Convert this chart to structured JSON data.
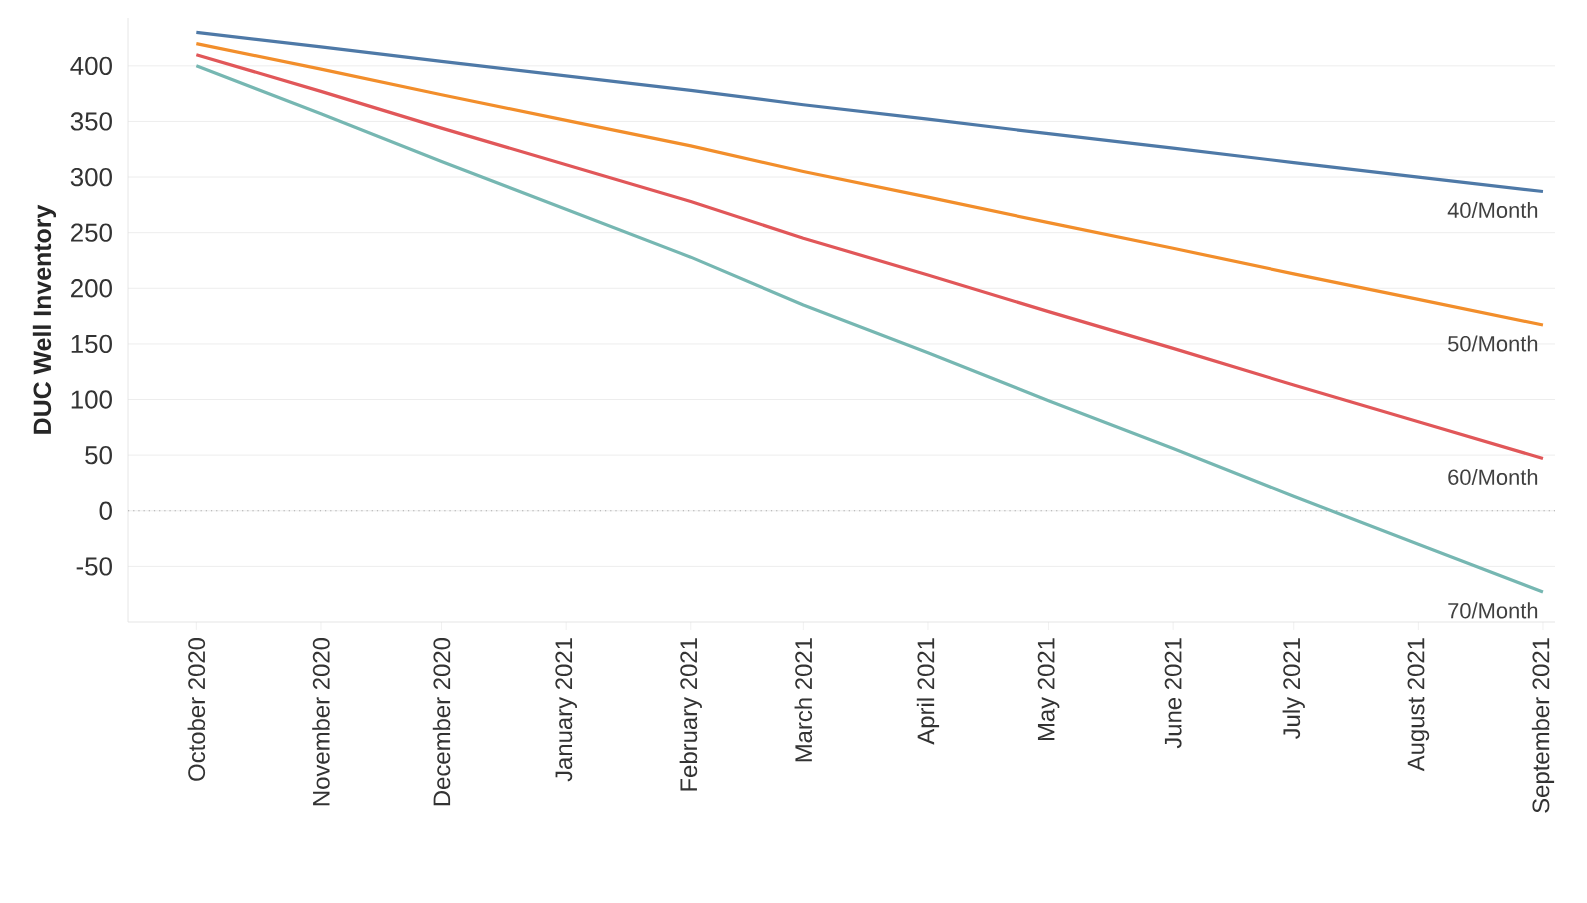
{
  "chart_data": {
    "type": "line",
    "ylabel": "DUC Well Inventory",
    "x": [
      "2020-10",
      "2020-11",
      "2020-12",
      "2021-01",
      "2021-02",
      "2021-03",
      "2021-04",
      "2021-05",
      "2021-06",
      "2021-07",
      "2021-08",
      "2021-09"
    ],
    "series": [
      {
        "name": "40/Month",
        "color": "#4e79a7",
        "values": [
          430,
          417,
          404,
          391,
          378,
          365,
          352,
          339,
          326,
          313,
          300,
          287
        ]
      },
      {
        "name": "50/Month",
        "color": "#f28e2b",
        "values": [
          420,
          397,
          374,
          351,
          328,
          305,
          282,
          259,
          236,
          213,
          190,
          167
        ]
      },
      {
        "name": "60/Month",
        "color": "#e15759",
        "values": [
          410,
          377,
          344,
          311,
          278,
          245,
          212,
          179,
          146,
          113,
          80,
          47
        ]
      },
      {
        "name": "70/Month",
        "color": "#76b7b2",
        "values": [
          400,
          357,
          314,
          271,
          228,
          185,
          142,
          99,
          56,
          13,
          -30,
          -73
        ]
      }
    ],
    "xlim": [
      "2020-09-14",
      "2021-09-04"
    ],
    "ylim": [
      -100,
      443
    ],
    "xticks": [
      {
        "value": "2020-10",
        "label": "October 2020"
      },
      {
        "value": "2020-11",
        "label": "November 2020"
      },
      {
        "value": "2020-12",
        "label": "December 2020"
      },
      {
        "value": "2021-01",
        "label": "January 2021"
      },
      {
        "value": "2021-02",
        "label": "February 2021"
      },
      {
        "value": "2021-03",
        "label": "March 2021"
      },
      {
        "value": "2021-04",
        "label": "April 2021"
      },
      {
        "value": "2021-05",
        "label": "May 2021"
      },
      {
        "value": "2021-06",
        "label": "June 2021"
      },
      {
        "value": "2021-07",
        "label": "July 2021"
      },
      {
        "value": "2021-08",
        "label": "August 2021"
      },
      {
        "value": "2021-09",
        "label": "September 2021"
      }
    ],
    "yticks": [
      -50,
      0,
      50,
      100,
      150,
      200,
      250,
      300,
      350,
      400
    ],
    "ref_lines": [
      {
        "axis": "y",
        "value": 0,
        "color": "#aaaaaa",
        "line_style": "dotted"
      }
    ],
    "grid": "y",
    "legend": false,
    "marker": "none",
    "line_style": "solid"
  }
}
